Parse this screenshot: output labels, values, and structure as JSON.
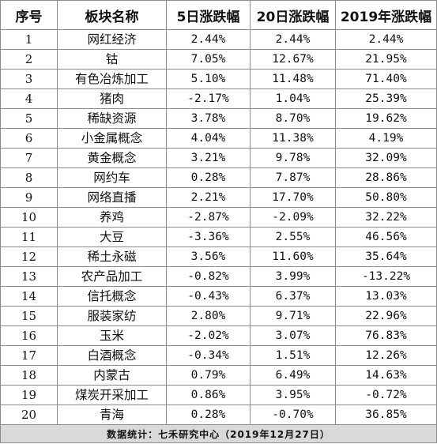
{
  "table": {
    "headers": [
      "序号",
      "板块名称",
      "5日涨跌幅",
      "20日涨跌幅",
      "2019年涨跌幅"
    ],
    "rows": [
      [
        "1",
        "网红经济",
        "2.44%",
        "2.44%",
        "2.44%"
      ],
      [
        "2",
        "钴",
        "7.05%",
        "12.67%",
        "21.95%"
      ],
      [
        "3",
        "有色冶炼加工",
        "5.10%",
        "11.48%",
        "71.40%"
      ],
      [
        "4",
        "猪肉",
        "-2.17%",
        "1.04%",
        "25.39%"
      ],
      [
        "5",
        "稀缺资源",
        "3.78%",
        "8.70%",
        "19.62%"
      ],
      [
        "6",
        "小金属概念",
        "4.04%",
        "11.38%",
        "4.19%"
      ],
      [
        "7",
        "黄金概念",
        "3.21%",
        "9.78%",
        "32.09%"
      ],
      [
        "8",
        "网约车",
        "0.28%",
        "7.87%",
        "28.86%"
      ],
      [
        "9",
        "网络直播",
        "2.21%",
        "17.70%",
        "50.80%"
      ],
      [
        "10",
        "养鸡",
        "-2.87%",
        "-2.09%",
        "32.22%"
      ],
      [
        "11",
        "大豆",
        "-3.36%",
        "2.55%",
        "46.56%"
      ],
      [
        "12",
        "稀土永磁",
        "3.56%",
        "11.60%",
        "35.64%"
      ],
      [
        "13",
        "农产品加工",
        "-0.82%",
        "3.99%",
        "-13.22%"
      ],
      [
        "14",
        "信托概念",
        "-0.43%",
        "6.37%",
        "13.03%"
      ],
      [
        "15",
        "服装家纺",
        "2.80%",
        "9.71%",
        "22.96%"
      ],
      [
        "16",
        "玉米",
        "-2.02%",
        "3.07%",
        "76.83%"
      ],
      [
        "17",
        "白酒概念",
        "-0.34%",
        "1.51%",
        "12.26%"
      ],
      [
        "18",
        "内蒙古",
        "0.79%",
        "6.49%",
        "14.63%"
      ],
      [
        "19",
        "煤炭开采加工",
        "0.86%",
        "3.95%",
        "-0.72%"
      ],
      [
        "20",
        "青海",
        "0.28%",
        "-0.70%",
        "36.85%"
      ]
    ],
    "footer": "数据统计：七禾研究中心（2019年12月27日）"
  },
  "colors": {
    "border": "#8c8c8c",
    "footer_background": "#d9d9d9",
    "text": "#111111"
  }
}
